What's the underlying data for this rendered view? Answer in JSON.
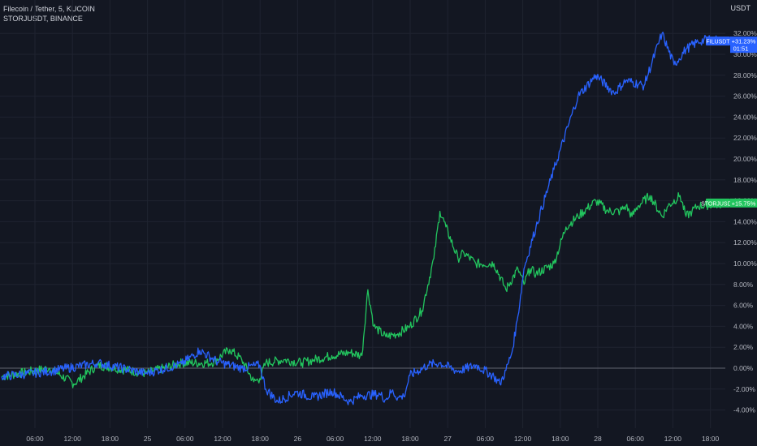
{
  "legend": {
    "main_symbol": "Filecoin / Tether, 5, KUCOIN",
    "compare_symbol": "STORJUSDT, BINANCE"
  },
  "currency": "USDT",
  "colors": {
    "background": "#131722",
    "grid": "#1f2330",
    "fil_series": "#2962ff",
    "storj_series": "#22c55e",
    "text": "#b2b5be"
  },
  "price_tags": [
    {
      "symbol": "FILUSDT",
      "value": "+31.23%",
      "countdown": "01:51",
      "color": "#2962ff"
    },
    {
      "symbol": "STORJUSDT",
      "value": "+15.75%",
      "color": "#22c55e"
    }
  ],
  "chart_data": {
    "type": "line",
    "title": "Filecoin / Tether, 5, KUCOIN",
    "y_unit": "%",
    "ylim": [
      -5,
      33
    ],
    "y_ticks": [
      "32.00%",
      "30.00%",
      "28.00%",
      "26.00%",
      "24.00%",
      "22.00%",
      "20.00%",
      "18.00%",
      "16.00%",
      "14.00%",
      "12.00%",
      "10.00%",
      "8.00%",
      "6.00%",
      "4.00%",
      "2.00%",
      "0.00%",
      "-2.00%",
      "-4.00%"
    ],
    "x_ticks": [
      "06:00",
      "12:00",
      "18:00",
      "25",
      "06:00",
      "12:00",
      "18:00",
      "26",
      "06:00",
      "12:00",
      "18:00",
      "27",
      "06:00",
      "12:00",
      "18:00",
      "28",
      "06:00",
      "12:00",
      "18:00"
    ],
    "grid": true,
    "series": [
      {
        "name": "FILUSDT",
        "color": "#2962ff",
        "x": [
          0,
          8,
          16,
          24,
          30,
          33,
          36,
          40,
          43,
          44,
          46,
          49,
          52,
          55,
          58,
          60,
          63,
          64,
          65,
          66,
          67,
          68,
          71,
          73,
          76,
          79,
          82,
          83,
          84,
          85,
          86,
          87,
          89,
          92,
          96,
          99,
          102,
          104,
          107,
          110,
          112,
          114,
          116,
          118,
          120
        ],
        "y": [
          -0.8,
          -0.3,
          0.5,
          -0.5,
          0.4,
          1.7,
          0.6,
          0.0,
          0.3,
          -2.0,
          -3.2,
          -2.3,
          -2.8,
          -2.2,
          -3.2,
          -2.6,
          -2.5,
          -3.0,
          -2.2,
          -2.8,
          -2.7,
          -0.7,
          0.3,
          0.5,
          -0.3,
          0.3,
          -0.8,
          -1.5,
          -0.2,
          1.5,
          5.0,
          9.5,
          13.5,
          19.0,
          26.0,
          28.0,
          26.3,
          27.5,
          27.0,
          32.0,
          29.0,
          30.5,
          31.2,
          31.5,
          31.23
        ]
      },
      {
        "name": "STORJUSDT",
        "color": "#22c55e",
        "x": [
          0,
          8,
          12,
          16,
          24,
          30,
          35,
          38,
          40,
          42,
          43,
          44,
          47,
          50,
          52,
          55,
          58,
          60,
          61,
          62,
          64,
          66,
          68,
          70,
          72,
          73,
          74,
          76,
          77,
          79,
          82,
          84,
          86,
          87,
          88,
          89,
          92,
          94,
          96,
          99,
          101,
          103,
          104,
          105,
          106,
          108,
          110,
          111,
          113,
          114,
          115,
          116,
          120
        ],
        "y": [
          -0.8,
          0.0,
          -1.5,
          0.3,
          -0.5,
          0.5,
          0.5,
          1.8,
          0.8,
          -1.3,
          -1.0,
          0.5,
          0.8,
          0.5,
          0.8,
          1.2,
          1.5,
          1.2,
          7.5,
          4.0,
          3.0,
          3.3,
          4.0,
          5.5,
          10.5,
          15.0,
          13.5,
          10.5,
          11.0,
          10.0,
          10.0,
          7.5,
          9.5,
          8.0,
          9.5,
          9.0,
          10.0,
          13.5,
          14.5,
          16.0,
          15.0,
          15.0,
          15.5,
          14.5,
          15.5,
          16.5,
          14.5,
          15.5,
          16.5,
          14.5,
          15.0,
          15.5,
          15.75
        ]
      }
    ]
  }
}
